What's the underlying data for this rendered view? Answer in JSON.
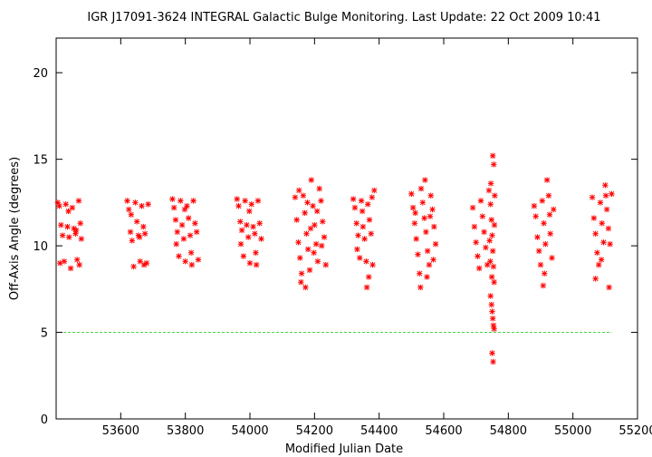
{
  "chart_data": {
    "type": "scatter",
    "title": "IGR J17091-3624   INTEGRAL Galactic Bulge Monitoring.  Last Update: 22 Oct 2009 10:41",
    "xlabel": "Modified Julian Date",
    "ylabel": "Off-Axis Angle (degrees)",
    "xlim": [
      53400,
      55200
    ],
    "ylim": [
      0,
      22
    ],
    "xticks": [
      53600,
      53800,
      54000,
      54200,
      54400,
      54600,
      54800,
      55000,
      55200
    ],
    "yticks": [
      0,
      5,
      10,
      15,
      20
    ],
    "grid": false,
    "marker": "asterisk",
    "point_color": "#ff0000",
    "reference_line": {
      "y": 5,
      "color": "#00cc00",
      "style": "dashed"
    },
    "x_unit": "MJD",
    "y_unit": "degrees",
    "series": [
      {
        "points": [
          [
            53405,
            12.5
          ],
          [
            53410,
            12.3
          ],
          [
            53415,
            11.2
          ],
          [
            53420,
            10.6
          ],
          [
            53425,
            9.1
          ],
          [
            53430,
            12.4
          ],
          [
            53435,
            11.1
          ],
          [
            53440,
            10.5
          ],
          [
            53445,
            8.7
          ],
          [
            53450,
            12.2
          ],
          [
            53455,
            11.0
          ],
          [
            53460,
            10.7
          ],
          [
            53465,
            9.2
          ],
          [
            53470,
            12.6
          ],
          [
            53475,
            11.3
          ],
          [
            53478,
            10.4
          ],
          [
            53412,
            9.0
          ],
          [
            53438,
            12.0
          ],
          [
            53462,
            10.9
          ],
          [
            53472,
            8.9
          ],
          [
            53620,
            12.6
          ],
          [
            53625,
            12.1
          ],
          [
            53630,
            10.8
          ],
          [
            53635,
            10.3
          ],
          [
            53640,
            8.8
          ],
          [
            53645,
            12.5
          ],
          [
            53650,
            11.4
          ],
          [
            53655,
            10.6
          ],
          [
            53660,
            9.1
          ],
          [
            53665,
            12.3
          ],
          [
            53670,
            11.1
          ],
          [
            53675,
            10.7
          ],
          [
            53680,
            9.0
          ],
          [
            53685,
            12.4
          ],
          [
            53632,
            11.8
          ],
          [
            53658,
            10.5
          ],
          [
            53672,
            8.9
          ],
          [
            53760,
            12.7
          ],
          [
            53765,
            12.2
          ],
          [
            53770,
            11.5
          ],
          [
            53775,
            10.8
          ],
          [
            53780,
            9.4
          ],
          [
            53785,
            12.6
          ],
          [
            53790,
            11.2
          ],
          [
            53795,
            10.4
          ],
          [
            53800,
            9.1
          ],
          [
            53805,
            12.3
          ],
          [
            53810,
            11.6
          ],
          [
            53815,
            10.6
          ],
          [
            53820,
            8.9
          ],
          [
            53825,
            12.6
          ],
          [
            53830,
            11.3
          ],
          [
            53835,
            10.8
          ],
          [
            53840,
            9.2
          ],
          [
            53772,
            10.1
          ],
          [
            53798,
            12.1
          ],
          [
            53818,
            9.6
          ],
          [
            53960,
            12.7
          ],
          [
            53965,
            12.3
          ],
          [
            53970,
            11.4
          ],
          [
            53975,
            10.9
          ],
          [
            53980,
            9.4
          ],
          [
            53985,
            12.6
          ],
          [
            53990,
            11.2
          ],
          [
            53995,
            10.5
          ],
          [
            54000,
            9.0
          ],
          [
            54005,
            12.4
          ],
          [
            54010,
            11.1
          ],
          [
            54015,
            10.7
          ],
          [
            54020,
            8.9
          ],
          [
            54025,
            12.6
          ],
          [
            54030,
            11.3
          ],
          [
            54035,
            10.4
          ],
          [
            53972,
            10.1
          ],
          [
            53998,
            12.0
          ],
          [
            54018,
            9.6
          ],
          [
            54140,
            12.8
          ],
          [
            54145,
            11.5
          ],
          [
            54150,
            10.2
          ],
          [
            54155,
            9.3
          ],
          [
            54160,
            8.4
          ],
          [
            54165,
            12.9
          ],
          [
            54170,
            11.9
          ],
          [
            54175,
            10.7
          ],
          [
            54180,
            9.8
          ],
          [
            54185,
            8.6
          ],
          [
            54190,
            13.8
          ],
          [
            54195,
            12.3
          ],
          [
            54200,
            11.2
          ],
          [
            54205,
            10.1
          ],
          [
            54210,
            9.1
          ],
          [
            54215,
            13.3
          ],
          [
            54220,
            12.6
          ],
          [
            54225,
            11.4
          ],
          [
            54230,
            10.5
          ],
          [
            54235,
            8.9
          ],
          [
            54152,
            13.2
          ],
          [
            54158,
            7.9
          ],
          [
            54172,
            7.6
          ],
          [
            54188,
            11.0
          ],
          [
            54198,
            9.6
          ],
          [
            54208,
            12.0
          ],
          [
            54222,
            10.0
          ],
          [
            54178,
            12.5
          ],
          [
            54320,
            12.7
          ],
          [
            54325,
            12.2
          ],
          [
            54330,
            11.3
          ],
          [
            54335,
            10.6
          ],
          [
            54340,
            9.3
          ],
          [
            54345,
            12.6
          ],
          [
            54350,
            11.1
          ],
          [
            54355,
            10.4
          ],
          [
            54360,
            9.1
          ],
          [
            54365,
            12.4
          ],
          [
            54370,
            11.5
          ],
          [
            54375,
            10.7
          ],
          [
            54380,
            8.9
          ],
          [
            54385,
            13.2
          ],
          [
            54362,
            7.6
          ],
          [
            54368,
            8.2
          ],
          [
            54348,
            12.0
          ],
          [
            54378,
            12.8
          ],
          [
            54332,
            9.8
          ],
          [
            54500,
            13.0
          ],
          [
            54505,
            12.2
          ],
          [
            54510,
            11.3
          ],
          [
            54515,
            10.4
          ],
          [
            54520,
            9.5
          ],
          [
            54525,
            8.4
          ],
          [
            54530,
            13.3
          ],
          [
            54535,
            12.5
          ],
          [
            54540,
            11.6
          ],
          [
            54545,
            10.8
          ],
          [
            54550,
            9.7
          ],
          [
            54555,
            8.9
          ],
          [
            54560,
            12.9
          ],
          [
            54565,
            12.1
          ],
          [
            54570,
            11.1
          ],
          [
            54575,
            10.1
          ],
          [
            54528,
            7.6
          ],
          [
            54542,
            13.8
          ],
          [
            54548,
            8.2
          ],
          [
            54568,
            9.2
          ],
          [
            54512,
            11.9
          ],
          [
            54558,
            11.7
          ],
          [
            54690,
            12.2
          ],
          [
            54695,
            11.1
          ],
          [
            54700,
            10.2
          ],
          [
            54705,
            9.4
          ],
          [
            54710,
            8.7
          ],
          [
            54715,
            12.6
          ],
          [
            54720,
            11.7
          ],
          [
            54725,
            10.8
          ],
          [
            54730,
            9.9
          ],
          [
            54735,
            8.9
          ],
          [
            54740,
            13.2
          ],
          [
            54745,
            12.4
          ],
          [
            54748,
            11.5
          ],
          [
            54750,
            10.6
          ],
          [
            54752,
            9.7
          ],
          [
            54754,
            8.8
          ],
          [
            54756,
            7.9
          ],
          [
            54745,
            7.1
          ],
          [
            54748,
            6.6
          ],
          [
            54750,
            6.2
          ],
          [
            54752,
            5.8
          ],
          [
            54754,
            5.4
          ],
          [
            54756,
            5.2
          ],
          [
            54752,
            15.2
          ],
          [
            54755,
            14.7
          ],
          [
            54750,
            3.8
          ],
          [
            54753,
            3.3
          ],
          [
            54746,
            13.6
          ],
          [
            54758,
            12.9
          ],
          [
            54742,
            10.3
          ],
          [
            54744,
            9.1
          ],
          [
            54757,
            11.2
          ],
          [
            54749,
            8.2
          ],
          [
            54880,
            12.3
          ],
          [
            54885,
            11.7
          ],
          [
            54890,
            10.5
          ],
          [
            54895,
            9.7
          ],
          [
            54900,
            8.9
          ],
          [
            54905,
            12.6
          ],
          [
            54910,
            11.3
          ],
          [
            54915,
            10.1
          ],
          [
            54920,
            13.8
          ],
          [
            54925,
            12.9
          ],
          [
            54930,
            10.7
          ],
          [
            54935,
            9.3
          ],
          [
            54940,
            12.1
          ],
          [
            54908,
            7.7
          ],
          [
            54912,
            8.4
          ],
          [
            54928,
            11.8
          ],
          [
            55060,
            12.8
          ],
          [
            55065,
            11.6
          ],
          [
            55070,
            10.7
          ],
          [
            55075,
            9.6
          ],
          [
            55080,
            8.9
          ],
          [
            55085,
            12.5
          ],
          [
            55090,
            11.3
          ],
          [
            55095,
            10.2
          ],
          [
            55100,
            13.5
          ],
          [
            55105,
            12.1
          ],
          [
            55110,
            11.0
          ],
          [
            55115,
            10.1
          ],
          [
            55120,
            13.0
          ],
          [
            55070,
            8.1
          ],
          [
            55112,
            7.6
          ],
          [
            55088,
            9.2
          ],
          [
            55102,
            12.9
          ]
        ]
      }
    ]
  }
}
